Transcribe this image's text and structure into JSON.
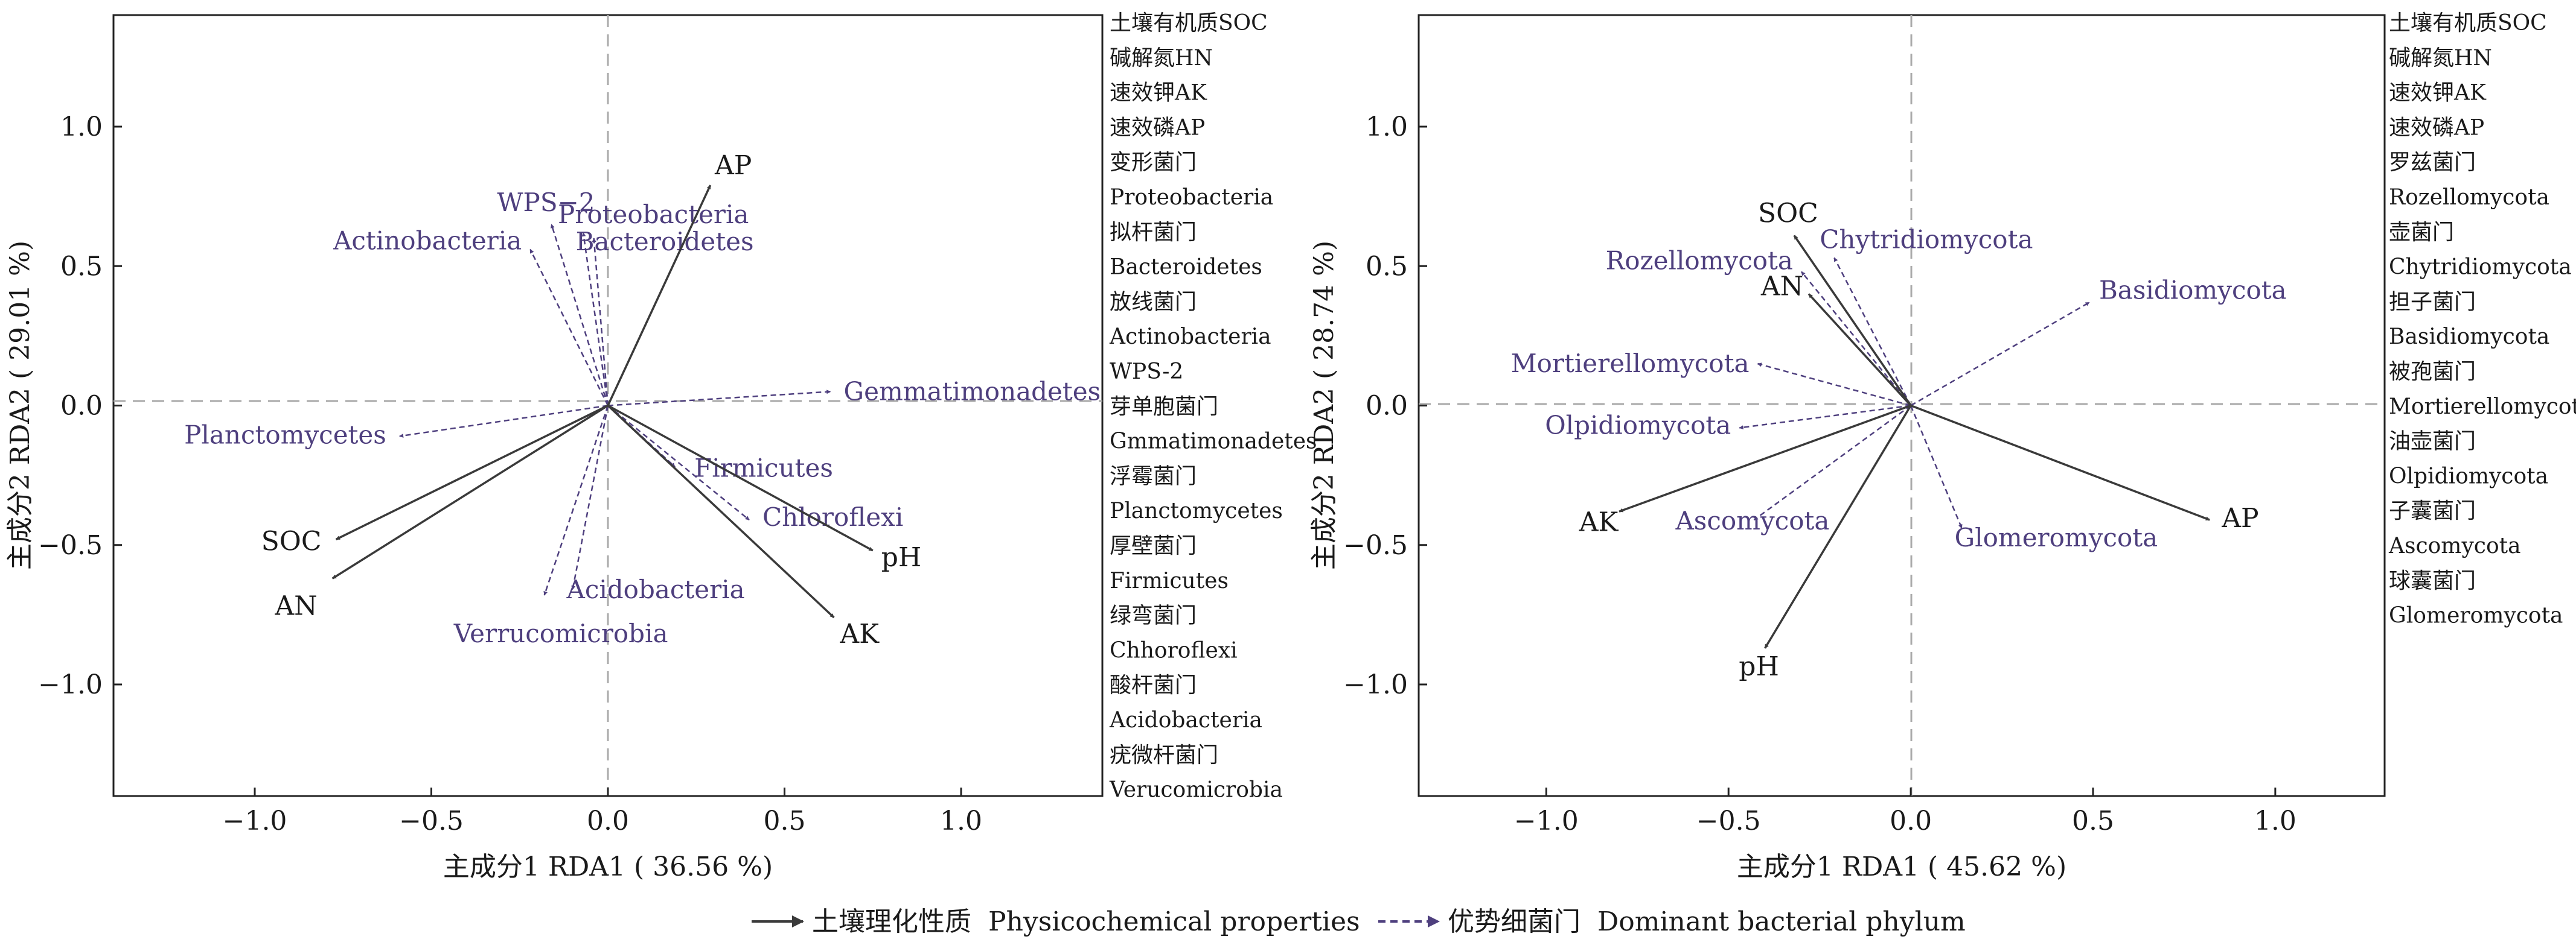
{
  "colors": {
    "env_arrow": "#3a3a3a",
    "species_arrow": "#4e3f7e",
    "species_text": "#4e3f7e",
    "text": "#1a1a1a",
    "frame": "#222222",
    "zero_line": "#aaaaaa"
  },
  "chart_data": [
    {
      "type": "scatter",
      "subtype": "rda-biplot",
      "xlabel": "主成分1 RDA1 ( 36.56 %)",
      "ylabel": "主成分2 RDA2 ( 29.01 %)",
      "xlim": [
        -1.4,
        1.4
      ],
      "ylim": [
        -1.4,
        1.4
      ],
      "xticks": [
        -1.0,
        -0.5,
        0.0,
        0.5,
        1.0
      ],
      "yticks": [
        -1.0,
        -0.5,
        0.0,
        0.5,
        1.0
      ],
      "xtick_labels": [
        "−1.0",
        "−0.5",
        "0.0",
        "0.5",
        "1.0"
      ],
      "ytick_labels": [
        "−1.0",
        "−0.5",
        "0.0",
        "0.5",
        "1.0"
      ],
      "zero_lines": true,
      "environment_vectors": [
        {
          "label": "AP",
          "x": 0.29,
          "y": 0.79
        },
        {
          "label": "SOC",
          "x": -0.77,
          "y": -0.48
        },
        {
          "label": "AN",
          "x": -0.78,
          "y": -0.62
        },
        {
          "label": "pH",
          "x": 0.75,
          "y": -0.52
        },
        {
          "label": "AK",
          "x": 0.64,
          "y": -0.76
        }
      ],
      "species_vectors": [
        {
          "label": "WPS−2",
          "x": -0.16,
          "y": 0.65
        },
        {
          "label": "Proteobacteria",
          "x": -0.07,
          "y": 0.62
        },
        {
          "label": "Bacteroidetes",
          "x": -0.04,
          "y": 0.6
        },
        {
          "label": "Actinobacteria",
          "x": -0.22,
          "y": 0.56
        },
        {
          "label": "Gemmatimonadetes",
          "x": 0.63,
          "y": 0.05
        },
        {
          "label": "Planctomycetes",
          "x": -0.59,
          "y": -0.11
        },
        {
          "label": "Firmicutes",
          "x": 0.19,
          "y": -0.22
        },
        {
          "label": "Chloroflexi",
          "x": 0.4,
          "y": -0.41
        },
        {
          "label": "Acidobacteria",
          "x": -0.1,
          "y": -0.66
        },
        {
          "label": "Verrucomicrobia",
          "x": -0.18,
          "y": -0.68
        }
      ],
      "legend_entries": [
        "土壤有机质SOC",
        "碱解氮HN",
        "速效钾AK",
        "速效磷AP",
        "变形菌门",
        "Proteobacteria",
        "拟杆菌门",
        "Bacteroidetes",
        "放线菌门",
        "Actinobacteria",
        "WPS-2",
        "芽单胞菌门",
        "Gmmatimonadetes",
        "浮霉菌门",
        "Planctomycetes",
        "厚壁菌门",
        "Firmicutes",
        "绿弯菌门",
        "Chhoroflexi",
        "酸杆菌门",
        "Acidobacteria",
        "疣微杆菌门",
        "Verucomicrobia"
      ],
      "legend_placement": "right"
    },
    {
      "type": "scatter",
      "subtype": "rda-biplot",
      "xlabel": "主成分1 RDA1 ( 45.62 %)",
      "ylabel": "主成分2 RDA2 ( 28.74 %)",
      "xlim": [
        -1.35,
        1.3
      ],
      "ylim": [
        -1.4,
        1.4
      ],
      "xticks": [
        -1.0,
        -0.5,
        0.0,
        0.5,
        1.0
      ],
      "yticks": [
        -1.0,
        -0.5,
        0.0,
        0.5,
        1.0
      ],
      "xtick_labels": [
        "−1.0",
        "−0.5",
        "0.0",
        "0.5",
        "1.0"
      ],
      "ytick_labels": [
        "−1.0",
        "−0.5",
        "0.0",
        "0.5",
        "1.0"
      ],
      "zero_lines": true,
      "environment_vectors": [
        {
          "label": "SOC",
          "x": -0.32,
          "y": 0.61
        },
        {
          "label": "AN",
          "x": -0.28,
          "y": 0.4
        },
        {
          "label": "AK",
          "x": -0.8,
          "y": -0.38
        },
        {
          "label": "AP",
          "x": 0.82,
          "y": -0.41
        },
        {
          "label": "pH",
          "x": -0.4,
          "y": -0.87
        }
      ],
      "species_vectors": [
        {
          "label": "Rozellomycota",
          "x": -0.3,
          "y": 0.48
        },
        {
          "label": "Chytridiomycota",
          "x": -0.21,
          "y": 0.53
        },
        {
          "label": "Basidiomycota",
          "x": 0.49,
          "y": 0.37
        },
        {
          "label": "Mortierellomycota",
          "x": -0.42,
          "y": 0.15
        },
        {
          "label": "Olpidiomycota",
          "x": -0.47,
          "y": -0.08
        },
        {
          "label": "Ascomycota",
          "x": -0.43,
          "y": -0.41
        },
        {
          "label": "Glomeromycota",
          "x": 0.14,
          "y": -0.44
        }
      ],
      "legend_entries": [
        "土壤有机质SOC",
        "碱解氮HN",
        "速效钾AK",
        "速效磷AP",
        "罗兹菌门",
        "Rozellomycota",
        "壶菌门",
        "Chytridiomycota",
        "担子菌门",
        "Basidiomycota",
        "被孢菌门",
        "Mortierellomycota",
        "油壶菌门",
        "Olpidiomycota",
        "子囊菌门",
        "Ascomycota",
        "球囊菌门",
        "Glomeromycota"
      ],
      "legend_placement": "right"
    }
  ],
  "bottom_legend": {
    "env_label": "土壤理化性质  Physicochemical properties",
    "species_label": "优势细菌门  Dominant bacterial phylum"
  }
}
